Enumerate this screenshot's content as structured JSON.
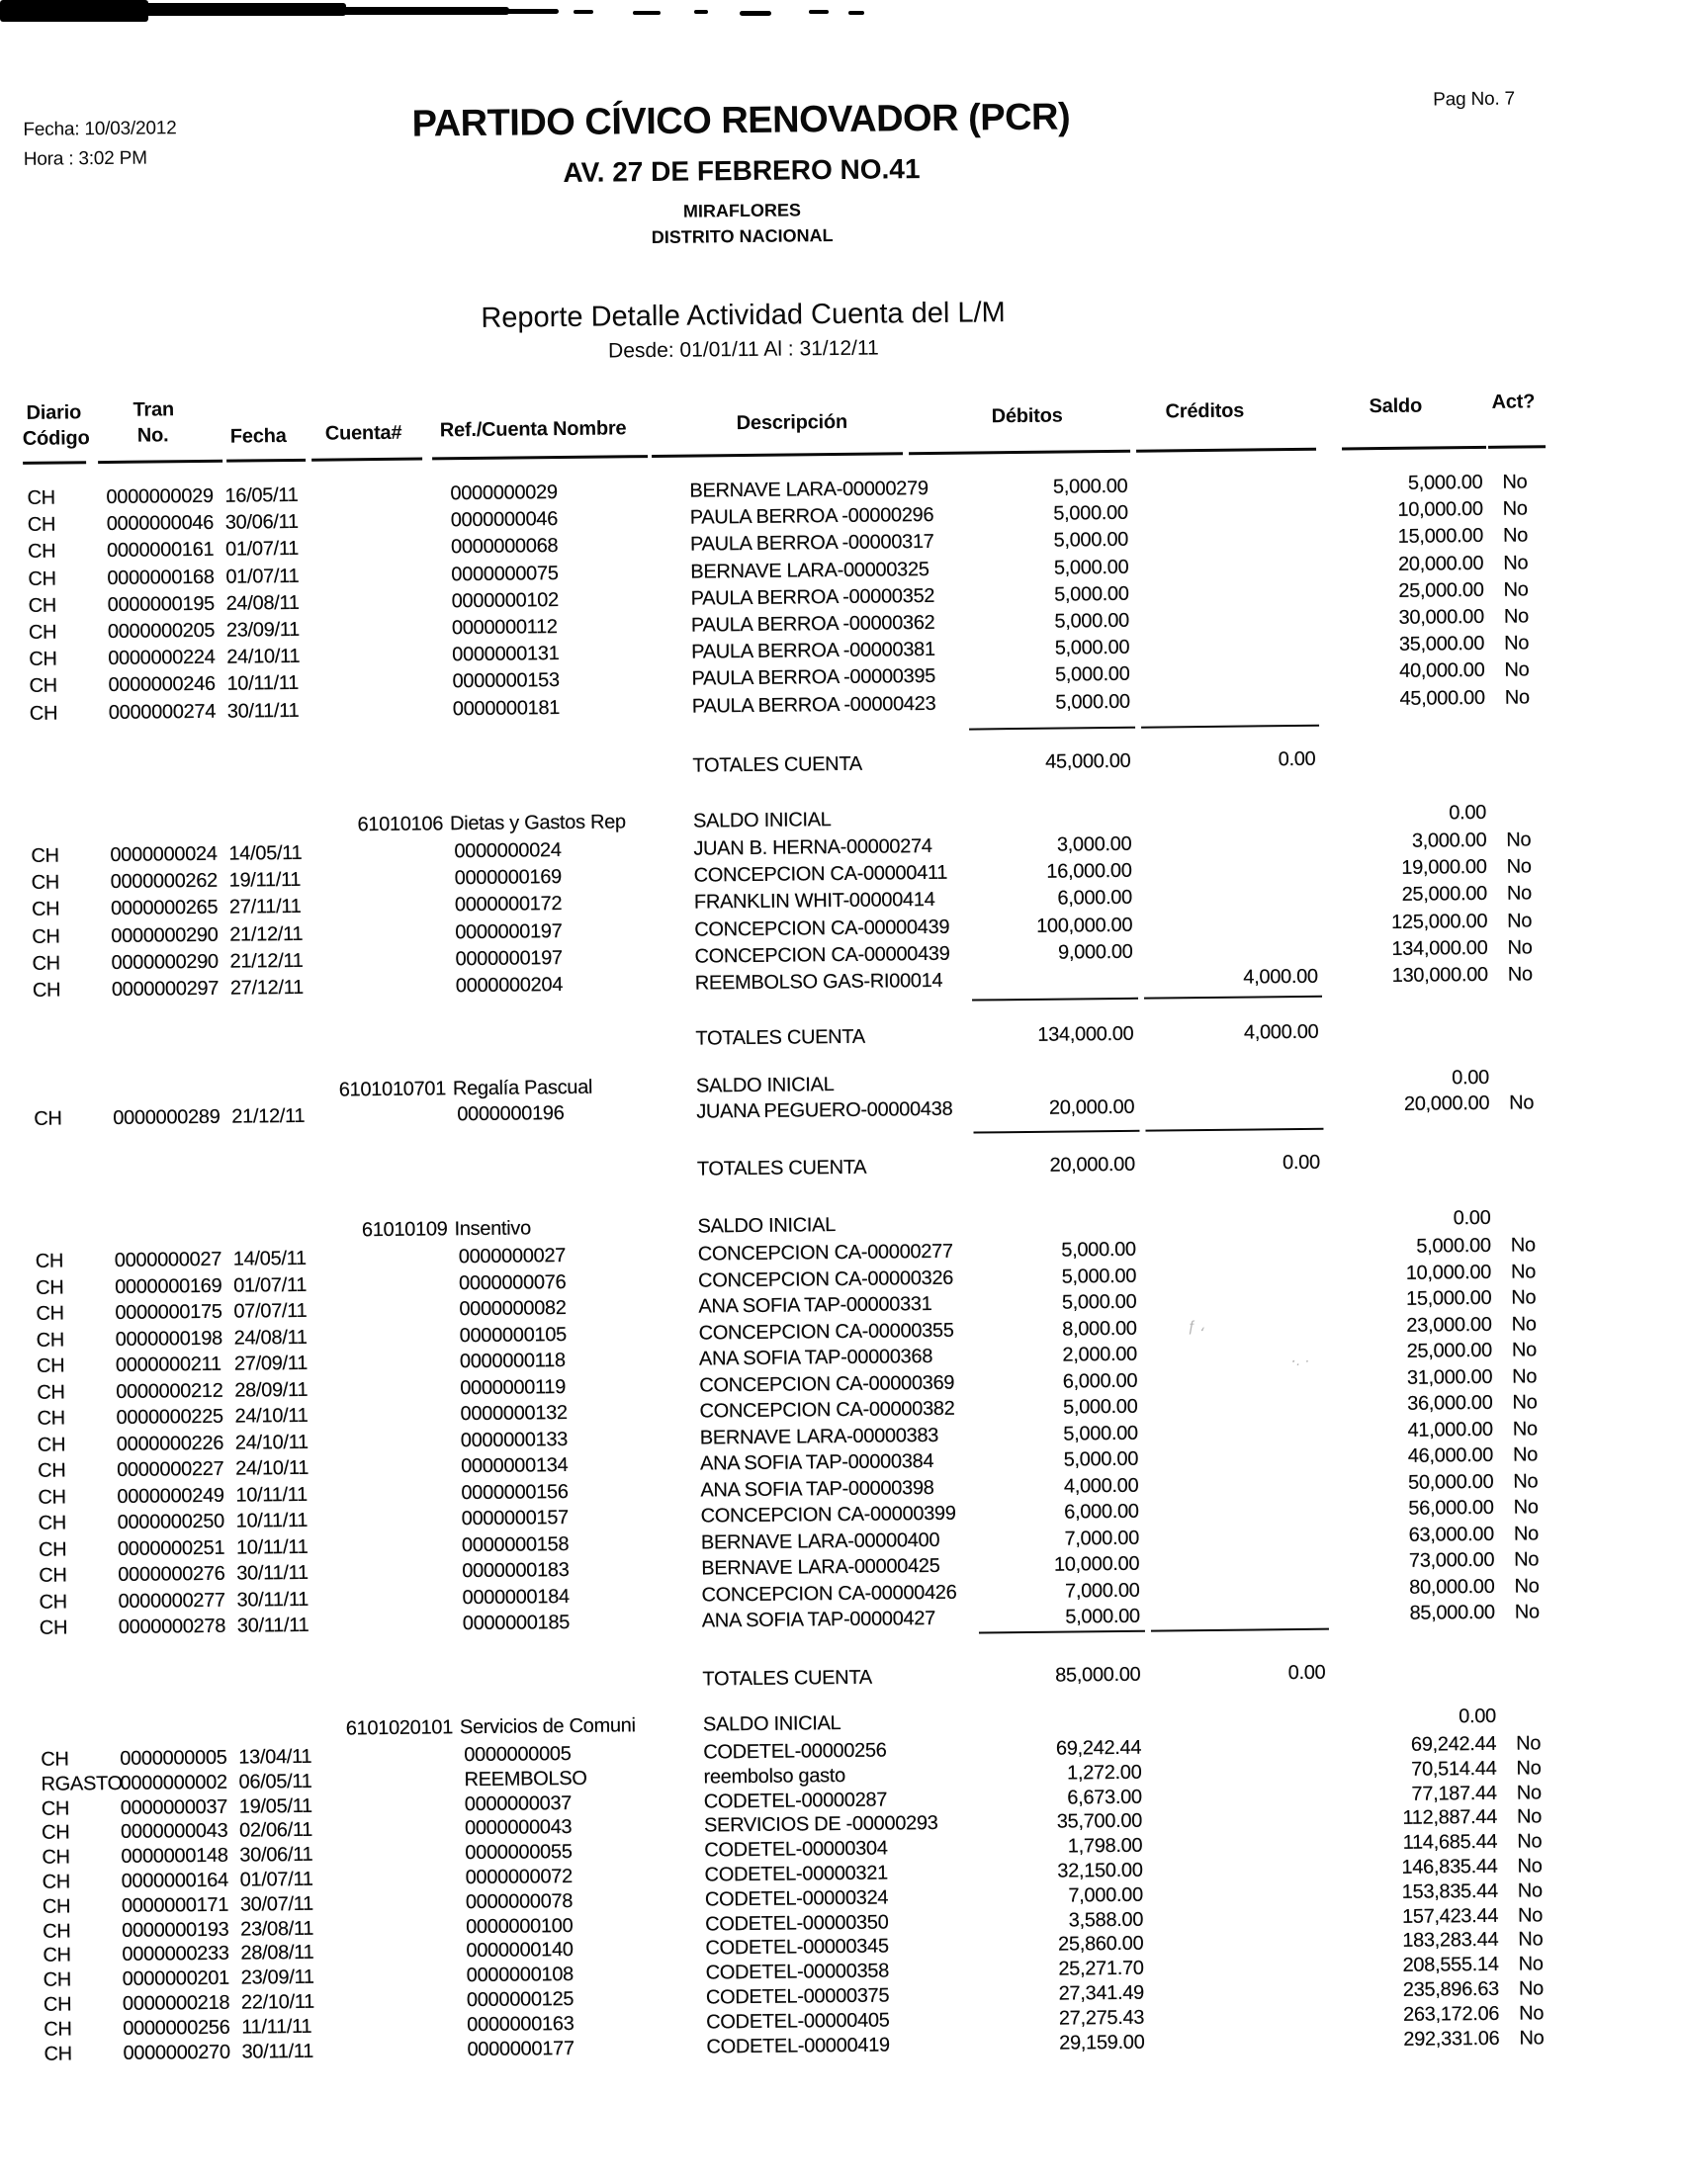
{
  "meta": {
    "fecha": "Fecha: 10/03/2012",
    "hora": "Hora :  3:02 PM",
    "page": "Pag  No. 7"
  },
  "org": {
    "name": "PARTIDO CÍVICO RENOVADOR (PCR)",
    "address": "AV. 27 DE FEBRERO NO.41",
    "sector": "MIRAFLORES",
    "district": "DISTRITO NACIONAL"
  },
  "report": {
    "title": "Reporte Detalle Actividad Cuenta del L/M",
    "range": "Desde: 01/01/11 Al : 31/12/11"
  },
  "table": {
    "headers": {
      "diario1": "Diario",
      "diario2": "Código",
      "tran1": "Tran",
      "tran2": "No.",
      "fecha": "Fecha",
      "cuenta": "Cuenta#",
      "ref": "Ref./Cuenta Nombre",
      "desc": "Descripción",
      "debitos": "Débitos",
      "creditos": "Créditos",
      "saldo": "Saldo",
      "act": "Act?"
    },
    "saldo_inicial_label": "SALDO INICIAL",
    "totales_label": "TOTALES CUENTA",
    "blocks": [
      {
        "cuenta": null,
        "nombre": null,
        "saldo_inicial": null,
        "rows": [
          {
            "diario": "CH",
            "tran": "0000000029",
            "fecha": "16/05/11",
            "ref": "0000000029",
            "desc": "BERNAVE LARA-00000279",
            "debito": "5,000.00",
            "credito": "",
            "saldo": "5,000.00",
            "act": "No"
          },
          {
            "diario": "CH",
            "tran": "0000000046",
            "fecha": "30/06/11",
            "ref": "0000000046",
            "desc": "PAULA BERROA -00000296",
            "debito": "5,000.00",
            "credito": "",
            "saldo": "10,000.00",
            "act": "No"
          },
          {
            "diario": "CH",
            "tran": "0000000161",
            "fecha": "01/07/11",
            "ref": "0000000068",
            "desc": "PAULA BERROA -00000317",
            "debito": "5,000.00",
            "credito": "",
            "saldo": "15,000.00",
            "act": "No"
          },
          {
            "diario": "CH",
            "tran": "0000000168",
            "fecha": "01/07/11",
            "ref": "0000000075",
            "desc": "BERNAVE LARA-00000325",
            "debito": "5,000.00",
            "credito": "",
            "saldo": "20,000.00",
            "act": "No"
          },
          {
            "diario": "CH",
            "tran": "0000000195",
            "fecha": "24/08/11",
            "ref": "0000000102",
            "desc": "PAULA BERROA -00000352",
            "debito": "5,000.00",
            "credito": "",
            "saldo": "25,000.00",
            "act": "No"
          },
          {
            "diario": "CH",
            "tran": "0000000205",
            "fecha": "23/09/11",
            "ref": "0000000112",
            "desc": "PAULA BERROA -00000362",
            "debito": "5,000.00",
            "credito": "",
            "saldo": "30,000.00",
            "act": "No"
          },
          {
            "diario": "CH",
            "tran": "0000000224",
            "fecha": "24/10/11",
            "ref": "0000000131",
            "desc": "PAULA BERROA -00000381",
            "debito": "5,000.00",
            "credito": "",
            "saldo": "35,000.00",
            "act": "No"
          },
          {
            "diario": "CH",
            "tran": "0000000246",
            "fecha": "10/11/11",
            "ref": "0000000153",
            "desc": "PAULA BERROA -00000395",
            "debito": "5,000.00",
            "credito": "",
            "saldo": "40,000.00",
            "act": "No"
          },
          {
            "diario": "CH",
            "tran": "0000000274",
            "fecha": "30/11/11",
            "ref": "0000000181",
            "desc": "PAULA BERROA -00000423",
            "debito": "5,000.00",
            "credito": "",
            "saldo": "45,000.00",
            "act": "No"
          }
        ],
        "totales": {
          "debitos": "45,000.00",
          "creditos": "0.00"
        }
      },
      {
        "cuenta": "61010106",
        "nombre": "Dietas y Gastos Rep",
        "saldo_inicial": "0.00",
        "rows": [
          {
            "diario": "CH",
            "tran": "0000000024",
            "fecha": "14/05/11",
            "ref": "0000000024",
            "desc": "JUAN B. HERNA-00000274",
            "debito": "3,000.00",
            "credito": "",
            "saldo": "3,000.00",
            "act": "No"
          },
          {
            "diario": "CH",
            "tran": "0000000262",
            "fecha": "19/11/11",
            "ref": "0000000169",
            "desc": "CONCEPCION CA-00000411",
            "debito": "16,000.00",
            "credito": "",
            "saldo": "19,000.00",
            "act": "No"
          },
          {
            "diario": "CH",
            "tran": "0000000265",
            "fecha": "27/11/11",
            "ref": "0000000172",
            "desc": "FRANKLIN WHIT-00000414",
            "debito": "6,000.00",
            "credito": "",
            "saldo": "25,000.00",
            "act": "No"
          },
          {
            "diario": "CH",
            "tran": "0000000290",
            "fecha": "21/12/11",
            "ref": "0000000197",
            "desc": "CONCEPCION CA-00000439",
            "debito": "100,000.00",
            "credito": "",
            "saldo": "125,000.00",
            "act": "No"
          },
          {
            "diario": "CH",
            "tran": "0000000290",
            "fecha": "21/12/11",
            "ref": "0000000197",
            "desc": "CONCEPCION CA-00000439",
            "debito": "9,000.00",
            "credito": "",
            "saldo": "134,000.00",
            "act": "No"
          },
          {
            "diario": "CH",
            "tran": "0000000297",
            "fecha": "27/12/11",
            "ref": "0000000204",
            "desc": "REEMBOLSO GAS-RI00014",
            "debito": "",
            "credito": "4,000.00",
            "saldo": "130,000.00",
            "act": "No"
          }
        ],
        "totales": {
          "debitos": "134,000.00",
          "creditos": "4,000.00"
        }
      },
      {
        "cuenta": "6101010701",
        "nombre": "Regalía Pascual",
        "saldo_inicial": "0.00",
        "rows": [
          {
            "diario": "CH",
            "tran": "0000000289",
            "fecha": "21/12/11",
            "ref": "0000000196",
            "desc": "JUANA PEGUERO-00000438",
            "debito": "20,000.00",
            "credito": "",
            "saldo": "20,000.00",
            "act": "No"
          }
        ],
        "totales": {
          "debitos": "20,000.00",
          "creditos": "0.00"
        }
      },
      {
        "cuenta": "61010109",
        "nombre": "Insentivo",
        "saldo_inicial": "0.00",
        "rows": [
          {
            "diario": "CH",
            "tran": "0000000027",
            "fecha": "14/05/11",
            "ref": "0000000027",
            "desc": "CONCEPCION CA-00000277",
            "debito": "5,000.00",
            "credito": "",
            "saldo": "5,000.00",
            "act": "No"
          },
          {
            "diario": "CH",
            "tran": "0000000169",
            "fecha": "01/07/11",
            "ref": "0000000076",
            "desc": "CONCEPCION CA-00000326",
            "debito": "5,000.00",
            "credito": "",
            "saldo": "10,000.00",
            "act": "No"
          },
          {
            "diario": "CH",
            "tran": "0000000175",
            "fecha": "07/07/11",
            "ref": "0000000082",
            "desc": "ANA SOFIA TAP-00000331",
            "debito": "5,000.00",
            "credito": "",
            "saldo": "15,000.00",
            "act": "No"
          },
          {
            "diario": "CH",
            "tran": "0000000198",
            "fecha": "24/08/11",
            "ref": "0000000105",
            "desc": "CONCEPCION CA-00000355",
            "debito": "8,000.00",
            "credito": "",
            "saldo": "23,000.00",
            "act": "No"
          },
          {
            "diario": "CH",
            "tran": "0000000211",
            "fecha": "27/09/11",
            "ref": "0000000118",
            "desc": "ANA SOFIA TAP-00000368",
            "debito": "2,000.00",
            "credito": "",
            "saldo": "25,000.00",
            "act": "No"
          },
          {
            "diario": "CH",
            "tran": "0000000212",
            "fecha": "28/09/11",
            "ref": "0000000119",
            "desc": "CONCEPCION CA-00000369",
            "debito": "6,000.00",
            "credito": "",
            "saldo": "31,000.00",
            "act": "No"
          },
          {
            "diario": "CH",
            "tran": "0000000225",
            "fecha": "24/10/11",
            "ref": "0000000132",
            "desc": "CONCEPCION CA-00000382",
            "debito": "5,000.00",
            "credito": "",
            "saldo": "36,000.00",
            "act": "No"
          },
          {
            "diario": "CH",
            "tran": "0000000226",
            "fecha": "24/10/11",
            "ref": "0000000133",
            "desc": "BERNAVE LARA-00000383",
            "debito": "5,000.00",
            "credito": "",
            "saldo": "41,000.00",
            "act": "No"
          },
          {
            "diario": "CH",
            "tran": "0000000227",
            "fecha": "24/10/11",
            "ref": "0000000134",
            "desc": "ANA SOFIA TAP-00000384",
            "debito": "5,000.00",
            "credito": "",
            "saldo": "46,000.00",
            "act": "No"
          },
          {
            "diario": "CH",
            "tran": "0000000249",
            "fecha": "10/11/11",
            "ref": "0000000156",
            "desc": "ANA SOFIA TAP-00000398",
            "debito": "4,000.00",
            "credito": "",
            "saldo": "50,000.00",
            "act": "No"
          },
          {
            "diario": "CH",
            "tran": "0000000250",
            "fecha": "10/11/11",
            "ref": "0000000157",
            "desc": "CONCEPCION CA-00000399",
            "debito": "6,000.00",
            "credito": "",
            "saldo": "56,000.00",
            "act": "No"
          },
          {
            "diario": "CH",
            "tran": "0000000251",
            "fecha": "10/11/11",
            "ref": "0000000158",
            "desc": "BERNAVE LARA-00000400",
            "debito": "7,000.00",
            "credito": "",
            "saldo": "63,000.00",
            "act": "No"
          },
          {
            "diario": "CH",
            "tran": "0000000276",
            "fecha": "30/11/11",
            "ref": "0000000183",
            "desc": "BERNAVE LARA-00000425",
            "debito": "10,000.00",
            "credito": "",
            "saldo": "73,000.00",
            "act": "No"
          },
          {
            "diario": "CH",
            "tran": "0000000277",
            "fecha": "30/11/11",
            "ref": "0000000184",
            "desc": "CONCEPCION CA-00000426",
            "debito": "7,000.00",
            "credito": "",
            "saldo": "80,000.00",
            "act": "No"
          },
          {
            "diario": "CH",
            "tran": "0000000278",
            "fecha": "30/11/11",
            "ref": "0000000185",
            "desc": "ANA SOFIA TAP-00000427",
            "debito": "5,000.00",
            "credito": "",
            "saldo": "85,000.00",
            "act": "No"
          }
        ],
        "totales": {
          "debitos": "85,000.00",
          "creditos": "0.00"
        }
      },
      {
        "cuenta": "6101020101",
        "nombre": "Servicios de Comuni",
        "saldo_inicial": "0.00",
        "rows": [
          {
            "diario": "CH",
            "tran": "0000000005",
            "fecha": "13/04/11",
            "ref": "0000000005",
            "desc": "CODETEL-00000256",
            "debito": "69,242.44",
            "credito": "",
            "saldo": "69,242.44",
            "act": "No"
          },
          {
            "diario": "RGASTO",
            "tran": "0000000002",
            "fecha": "06/05/11",
            "ref": "REEMBOLSO",
            "desc": "reembolso gasto",
            "debito": "1,272.00",
            "credito": "",
            "saldo": "70,514.44",
            "act": "No"
          },
          {
            "diario": "CH",
            "tran": "0000000037",
            "fecha": "19/05/11",
            "ref": "0000000037",
            "desc": "CODETEL-00000287",
            "debito": "6,673.00",
            "credito": "",
            "saldo": "77,187.44",
            "act": "No"
          },
          {
            "diario": "CH",
            "tran": "0000000043",
            "fecha": "02/06/11",
            "ref": "0000000043",
            "desc": "SERVICIOS DE -00000293",
            "debito": "35,700.00",
            "credito": "",
            "saldo": "112,887.44",
            "act": "No"
          },
          {
            "diario": "CH",
            "tran": "0000000148",
            "fecha": "30/06/11",
            "ref": "0000000055",
            "desc": "CODETEL-00000304",
            "debito": "1,798.00",
            "credito": "",
            "saldo": "114,685.44",
            "act": "No"
          },
          {
            "diario": "CH",
            "tran": "0000000164",
            "fecha": "01/07/11",
            "ref": "0000000072",
            "desc": "CODETEL-00000321",
            "debito": "32,150.00",
            "credito": "",
            "saldo": "146,835.44",
            "act": "No"
          },
          {
            "diario": "CH",
            "tran": "0000000171",
            "fecha": "30/07/11",
            "ref": "0000000078",
            "desc": "CODETEL-00000324",
            "debito": "7,000.00",
            "credito": "",
            "saldo": "153,835.44",
            "act": "No"
          },
          {
            "diario": "CH",
            "tran": "0000000193",
            "fecha": "23/08/11",
            "ref": "0000000100",
            "desc": "CODETEL-00000350",
            "debito": "3,588.00",
            "credito": "",
            "saldo": "157,423.44",
            "act": "No"
          },
          {
            "diario": "CH",
            "tran": "0000000233",
            "fecha": "28/08/11",
            "ref": "0000000140",
            "desc": "CODETEL-00000345",
            "debito": "25,860.00",
            "credito": "",
            "saldo": "183,283.44",
            "act": "No"
          },
          {
            "diario": "CH",
            "tran": "0000000201",
            "fecha": "23/09/11",
            "ref": "0000000108",
            "desc": "CODETEL-00000358",
            "debito": "25,271.70",
            "credito": "",
            "saldo": "208,555.14",
            "act": "No"
          },
          {
            "diario": "CH",
            "tran": "0000000218",
            "fecha": "22/10/11",
            "ref": "0000000125",
            "desc": "CODETEL-00000375",
            "debito": "27,341.49",
            "credito": "",
            "saldo": "235,896.63",
            "act": "No"
          },
          {
            "diario": "CH",
            "tran": "0000000256",
            "fecha": "11/11/11",
            "ref": "0000000163",
            "desc": "CODETEL-00000405",
            "debito": "27,275.43",
            "credito": "",
            "saldo": "263,172.06",
            "act": "No"
          },
          {
            "diario": "CH",
            "tran": "0000000270",
            "fecha": "30/11/11",
            "ref": "0000000177",
            "desc": "CODETEL-00000419",
            "debito": "29,159.00",
            "credito": "",
            "saldo": "292,331.06",
            "act": "No"
          }
        ],
        "totales": null
      }
    ]
  }
}
